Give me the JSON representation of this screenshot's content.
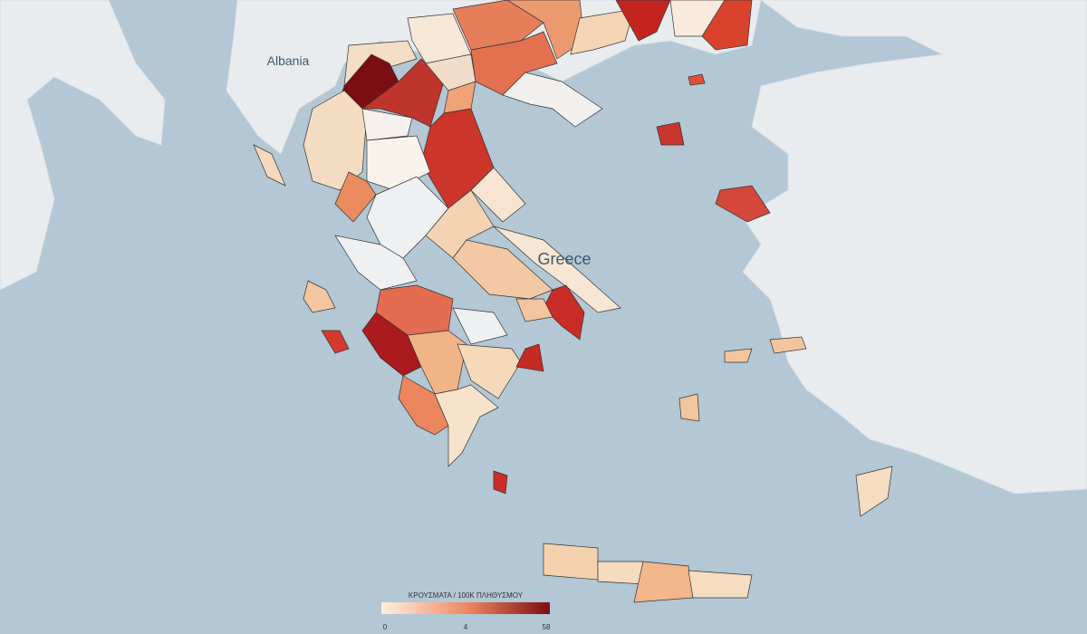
{
  "map": {
    "labels": [
      "Albania",
      "Greece"
    ],
    "legend": {
      "title": "ΚΡΟΥΣΜΑΤΑ / 100Κ ΠΛΗΘΥΣΜΟΥ",
      "ticks": [
        0,
        4,
        58
      ]
    }
  }
}
